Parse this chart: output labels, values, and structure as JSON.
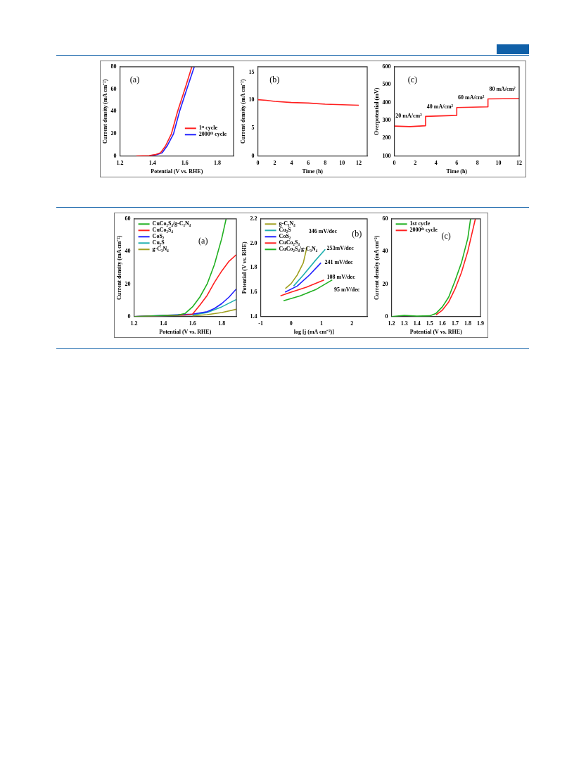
{
  "chart_data": [
    {
      "type": "line",
      "xlabel": "Potential (V vs. RHE)",
      "ylabel": "Current density (mA cm⁻²)",
      "xlim": [
        1.2,
        1.9
      ],
      "xticks": [
        1.2,
        1.4,
        1.6,
        1.8
      ],
      "ylim": [
        0,
        80
      ],
      "yticks": [
        0,
        20,
        40,
        60,
        80
      ],
      "legend": "bottom right",
      "annotations": [
        "(a)"
      ],
      "series": [
        {
          "name": "1ˢᵗ cycle",
          "color": "#ff2020",
          "x": [
            1.3,
            1.38,
            1.42,
            1.45,
            1.48,
            1.517,
            1.555,
            1.6,
            1.643
          ],
          "values": [
            0.2,
            0.5,
            1.5,
            3,
            9,
            20,
            40,
            60,
            80
          ]
        },
        {
          "name": "2000ᵗʰ cycle",
          "color": "#2020ff",
          "x": [
            1.39,
            1.43,
            1.46,
            1.49,
            1.53,
            1.567,
            1.612,
            1.658
          ],
          "values": [
            0.5,
            1.5,
            3,
            9,
            20,
            40,
            60,
            80
          ]
        }
      ]
    },
    {
      "type": "line",
      "xlabel": "Time (h)",
      "ylabel": "Current density (mA cm⁻²)",
      "xlim": [
        0,
        13
      ],
      "xticks": [
        0,
        2,
        4,
        6,
        8,
        10,
        12
      ],
      "ylim": [
        0,
        16
      ],
      "yticks": [
        0,
        5,
        10,
        15
      ],
      "annotations": [
        "(b)"
      ],
      "series": [
        {
          "color": "#ff2020",
          "x": [
            0,
            1,
            2,
            4,
            6,
            8,
            10,
            12
          ],
          "values": [
            10.1,
            10,
            9.8,
            9.6,
            9.5,
            9.3,
            9.2,
            9.1
          ]
        }
      ]
    },
    {
      "type": "line",
      "xlabel": "Time (h)",
      "ylabel": "Overpotential (mV)",
      "xlim": [
        0,
        12
      ],
      "xticks": [
        0,
        2,
        4,
        6,
        8,
        10,
        12
      ],
      "ylim": [
        100,
        600
      ],
      "yticks": [
        100,
        200,
        300,
        400,
        500,
        600
      ],
      "annotations": [
        "(c)",
        "20 mA/cm²",
        "40 mA/cm²",
        "60 mA/cm²",
        "80 mA/cm²"
      ],
      "series": [
        {
          "color": "#ff2020",
          "x": [
            0,
            1.5,
            3,
            3,
            6,
            6,
            9,
            9,
            12
          ],
          "values": [
            268,
            265,
            270,
            322,
            328,
            372,
            376,
            420,
            422
          ]
        }
      ]
    },
    {
      "type": "line",
      "xlabel": "Potential (V vs. RHE)",
      "ylabel": "Current density (mA cm⁻²)",
      "xlim": [
        1.2,
        1.9
      ],
      "xticks": [
        1.2,
        1.4,
        1.6,
        1.8
      ],
      "ylim": [
        0,
        60
      ],
      "yticks": [
        0,
        20,
        40,
        60
      ],
      "legend": "top left",
      "annotations": [
        "(a)"
      ],
      "series": [
        {
          "name": "CuCo₂S₄/g-C₃N₄",
          "color": "#20b020",
          "x": [
            1.2,
            1.5,
            1.55,
            1.6,
            1.65,
            1.7,
            1.75,
            1.8,
            1.83
          ],
          "values": [
            0,
            1,
            2,
            6,
            12,
            20,
            32,
            48,
            60
          ]
        },
        {
          "name": "CuCo₂S₄",
          "color": "#ff2020",
          "x": [
            1.2,
            1.55,
            1.6,
            1.65,
            1.7,
            1.75,
            1.8,
            1.85,
            1.9
          ],
          "values": [
            0,
            1,
            1.5,
            7,
            13,
            21,
            28,
            34,
            38
          ]
        },
        {
          "name": "CoS₂",
          "color": "#2020ff",
          "x": [
            1.2,
            1.6,
            1.7,
            1.75,
            1.8,
            1.85,
            1.9
          ],
          "values": [
            0,
            1.5,
            3,
            5,
            8,
            12,
            17
          ]
        },
        {
          "name": "Cu₂S",
          "color": "#20b0b0",
          "x": [
            1.2,
            1.6,
            1.7,
            1.8,
            1.9
          ],
          "values": [
            0,
            1,
            2.5,
            6,
            10.5
          ]
        },
        {
          "name": "g-C₃N₄",
          "color": "#a0a020",
          "x": [
            1.6,
            1.7,
            1.8,
            1.9
          ],
          "values": [
            0.5,
            1.2,
            2.5,
            4.5
          ]
        }
      ]
    },
    {
      "type": "line",
      "xlabel": "log [j (mA cm⁻²)]",
      "ylabel": "Potential (V vs. RHE)",
      "xlim": [
        -1,
        2.5
      ],
      "xticks": [
        -1,
        0,
        1,
        2
      ],
      "ylim": [
        1.4,
        2.2
      ],
      "yticks": [
        1.4,
        1.6,
        1.8,
        {
          "value": 2,
          "label": "2.0"
        },
        2.2
      ],
      "legend": "top left",
      "annotations": [
        "(b)",
        "346 mV/dec",
        "253mV/dec",
        "241 mV/dec",
        "108 mV/dec",
        "95 mV/dec"
      ],
      "series": [
        {
          "name": "g-C₃N₄",
          "color": "#a0a020",
          "x": [
            -0.19,
            0,
            0.2,
            0.4,
            0.52
          ],
          "values": [
            1.63,
            1.67,
            1.74,
            1.84,
            1.97
          ]
        },
        {
          "name": "Cu₂S",
          "color": "#20b0b0",
          "x": [
            0.08,
            0.4,
            0.8,
            1.12
          ],
          "values": [
            1.65,
            1.74,
            1.86,
            1.95
          ]
        },
        {
          "name": "CoS₂",
          "color": "#2020ff",
          "x": [
            -0.2,
            0.2,
            0.6,
            0.98
          ],
          "values": [
            1.6,
            1.65,
            1.74,
            1.84
          ]
        },
        {
          "name": "CuCo₂S₄",
          "color": "#ff2020",
          "x": [
            -0.35,
            0,
            0.5,
            1.08
          ],
          "values": [
            1.57,
            1.6,
            1.64,
            1.7
          ]
        },
        {
          "name": "CuCo₂S₄/g-C₃N₄",
          "color": "#20b020",
          "x": [
            -0.25,
            0.3,
            0.8,
            1.35
          ],
          "values": [
            1.53,
            1.57,
            1.62,
            1.7
          ]
        }
      ]
    },
    {
      "type": "line",
      "xlabel": "Potential (V vs. RHE)",
      "ylabel": "Current density (mA cm⁻²)",
      "xlim": [
        1.2,
        1.9
      ],
      "xticks": [
        1.2,
        1.3,
        1.4,
        1.5,
        1.6,
        1.7,
        1.8,
        1.9
      ],
      "ylim": [
        0,
        60
      ],
      "yticks": [
        0,
        20,
        40,
        60
      ],
      "legend": "top left",
      "annotations": [
        "(c)"
      ],
      "series": [
        {
          "name": "1st cycle",
          "color": "#20b020",
          "x": [
            1.2,
            1.3,
            1.4,
            1.5,
            1.55,
            1.6,
            1.65,
            1.7,
            1.75,
            1.8,
            1.822
          ],
          "values": [
            0,
            0.8,
            0.3,
            0.5,
            2,
            6,
            12,
            22,
            33,
            48,
            60
          ]
        },
        {
          "name": "2000ᵗʰ cycle",
          "color": "#ff2020",
          "x": [
            1.55,
            1.6,
            1.65,
            1.7,
            1.75,
            1.8,
            1.86
          ],
          "values": [
            1,
            4,
            9,
            17,
            27,
            40,
            60
          ]
        }
      ]
    }
  ]
}
